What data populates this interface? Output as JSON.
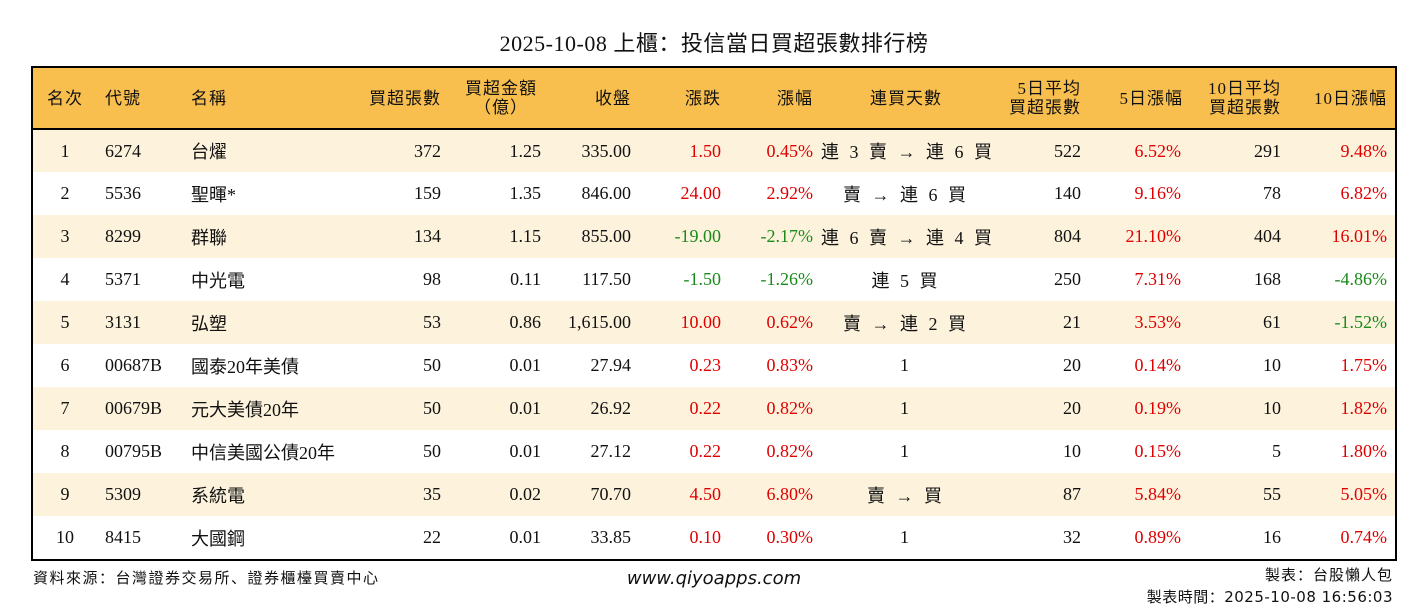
{
  "title": "2025-10-08 上櫃：投信當日買超張數排行榜",
  "colors": {
    "header_bg": "#f8bf4f",
    "row_alt_bg": "#fdf2dc",
    "up": "#e00000",
    "down": "#1a8a1a"
  },
  "columns": [
    {
      "key": "rank",
      "label": "名次",
      "label2": ""
    },
    {
      "key": "code",
      "label": "代號",
      "label2": ""
    },
    {
      "key": "name",
      "label": "名稱",
      "label2": ""
    },
    {
      "key": "net_buy_lots",
      "label": "買超張數",
      "label2": ""
    },
    {
      "key": "net_buy_amount",
      "label": "買超金額",
      "label2": "（億）"
    },
    {
      "key": "close",
      "label": "收盤",
      "label2": ""
    },
    {
      "key": "change",
      "label": "漲跌",
      "label2": ""
    },
    {
      "key": "change_pct",
      "label": "漲幅",
      "label2": ""
    },
    {
      "key": "streak",
      "label": "連買天數",
      "label2": ""
    },
    {
      "key": "avg5_lots",
      "label": "5日平均",
      "label2": "買超張數"
    },
    {
      "key": "chg5_pct",
      "label": "5日漲幅",
      "label2": ""
    },
    {
      "key": "avg10_lots",
      "label": "10日平均",
      "label2": "買超張數"
    },
    {
      "key": "chg10_pct",
      "label": "10日漲幅",
      "label2": ""
    }
  ],
  "rows": [
    {
      "rank": "1",
      "code": "6274",
      "name": "台燿",
      "net_buy_lots": "372",
      "net_buy_amount": "1.25",
      "close": "335.00",
      "change": "1.50",
      "change_pct": "0.45%",
      "streak": "連 3 賣 → 連 6 買",
      "avg5_lots": "522",
      "chg5_pct": "6.52%",
      "avg10_lots": "291",
      "chg10_pct": "9.48%",
      "change_dir": "up",
      "chg5_dir": "up",
      "chg10_dir": "up"
    },
    {
      "rank": "2",
      "code": "5536",
      "name": "聖暉*",
      "net_buy_lots": "159",
      "net_buy_amount": "1.35",
      "close": "846.00",
      "change": "24.00",
      "change_pct": "2.92%",
      "streak": "賣 → 連 6 買",
      "avg5_lots": "140",
      "chg5_pct": "9.16%",
      "avg10_lots": "78",
      "chg10_pct": "6.82%",
      "change_dir": "up",
      "chg5_dir": "up",
      "chg10_dir": "up"
    },
    {
      "rank": "3",
      "code": "8299",
      "name": "群聯",
      "net_buy_lots": "134",
      "net_buy_amount": "1.15",
      "close": "855.00",
      "change": "-19.00",
      "change_pct": "-2.17%",
      "streak": "連 6 賣 → 連 4 買",
      "avg5_lots": "804",
      "chg5_pct": "21.10%",
      "avg10_lots": "404",
      "chg10_pct": "16.01%",
      "change_dir": "down",
      "chg5_dir": "up",
      "chg10_dir": "up"
    },
    {
      "rank": "4",
      "code": "5371",
      "name": "中光電",
      "net_buy_lots": "98",
      "net_buy_amount": "0.11",
      "close": "117.50",
      "change": "-1.50",
      "change_pct": "-1.26%",
      "streak": "連 5 買",
      "avg5_lots": "250",
      "chg5_pct": "7.31%",
      "avg10_lots": "168",
      "chg10_pct": "-4.86%",
      "change_dir": "down",
      "chg5_dir": "up",
      "chg10_dir": "down"
    },
    {
      "rank": "5",
      "code": "3131",
      "name": "弘塑",
      "net_buy_lots": "53",
      "net_buy_amount": "0.86",
      "close": "1,615.00",
      "change": "10.00",
      "change_pct": "0.62%",
      "streak": "賣 → 連 2 買",
      "avg5_lots": "21",
      "chg5_pct": "3.53%",
      "avg10_lots": "61",
      "chg10_pct": "-1.52%",
      "change_dir": "up",
      "chg5_dir": "up",
      "chg10_dir": "down"
    },
    {
      "rank": "6",
      "code": "00687B",
      "name": "國泰20年美債",
      "net_buy_lots": "50",
      "net_buy_amount": "0.01",
      "close": "27.94",
      "change": "0.23",
      "change_pct": "0.83%",
      "streak": "1",
      "avg5_lots": "20",
      "chg5_pct": "0.14%",
      "avg10_lots": "10",
      "chg10_pct": "1.75%",
      "change_dir": "up",
      "chg5_dir": "up",
      "chg10_dir": "up"
    },
    {
      "rank": "7",
      "code": "00679B",
      "name": "元大美債20年",
      "net_buy_lots": "50",
      "net_buy_amount": "0.01",
      "close": "26.92",
      "change": "0.22",
      "change_pct": "0.82%",
      "streak": "1",
      "avg5_lots": "20",
      "chg5_pct": "0.19%",
      "avg10_lots": "10",
      "chg10_pct": "1.82%",
      "change_dir": "up",
      "chg5_dir": "up",
      "chg10_dir": "up"
    },
    {
      "rank": "8",
      "code": "00795B",
      "name": "中信美國公債20年",
      "net_buy_lots": "50",
      "net_buy_amount": "0.01",
      "close": "27.12",
      "change": "0.22",
      "change_pct": "0.82%",
      "streak": "1",
      "avg5_lots": "10",
      "chg5_pct": "0.15%",
      "avg10_lots": "5",
      "chg10_pct": "1.80%",
      "change_dir": "up",
      "chg5_dir": "up",
      "chg10_dir": "up"
    },
    {
      "rank": "9",
      "code": "5309",
      "name": "系統電",
      "net_buy_lots": "35",
      "net_buy_amount": "0.02",
      "close": "70.70",
      "change": "4.50",
      "change_pct": "6.80%",
      "streak": "賣 → 買",
      "avg5_lots": "87",
      "chg5_pct": "5.84%",
      "avg10_lots": "55",
      "chg10_pct": "5.05%",
      "change_dir": "up",
      "chg5_dir": "up",
      "chg10_dir": "up"
    },
    {
      "rank": "10",
      "code": "8415",
      "name": "大國鋼",
      "net_buy_lots": "22",
      "net_buy_amount": "0.01",
      "close": "33.85",
      "change": "0.10",
      "change_pct": "0.30%",
      "streak": "1",
      "avg5_lots": "32",
      "chg5_pct": "0.89%",
      "avg10_lots": "16",
      "chg10_pct": "0.74%",
      "change_dir": "up",
      "chg5_dir": "up",
      "chg10_dir": "up"
    }
  ],
  "footer": {
    "source": "資料來源：台灣證券交易所、證券櫃檯買賣中心",
    "website": "www.qiyoapps.com",
    "author": "製表：台股懶人包",
    "created_at": "製表時間：2025-10-08 16:56:03"
  }
}
